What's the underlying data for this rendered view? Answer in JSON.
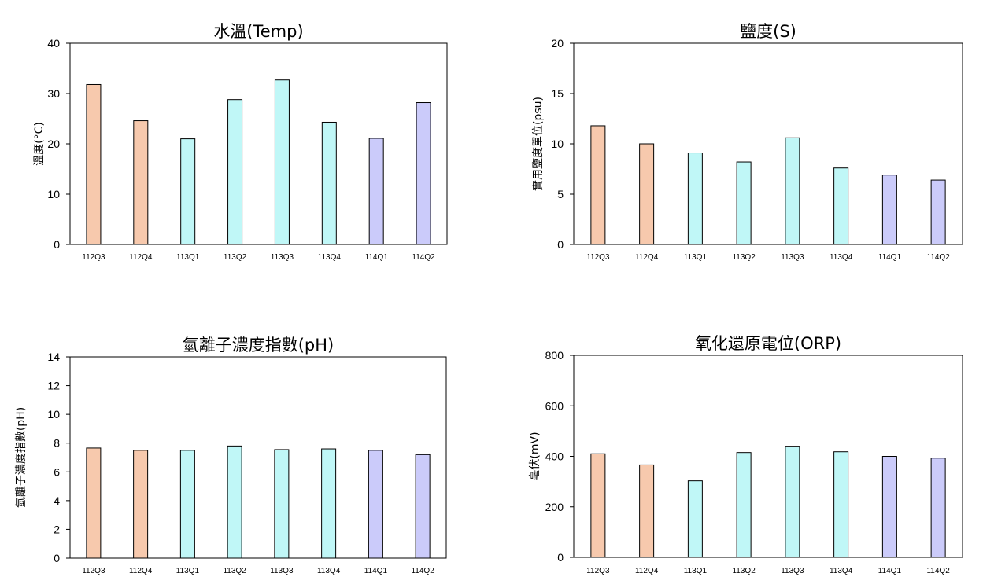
{
  "chart_data": [
    {
      "type": "bar",
      "title": "水溫(Temp)",
      "xlabel": "",
      "ylabel": "溫度(°C)",
      "categories": [
        "112Q3",
        "112Q4",
        "113Q1",
        "113Q2",
        "113Q3",
        "113Q4",
        "114Q1",
        "114Q2"
      ],
      "values": [
        31.8,
        24.6,
        21.0,
        28.8,
        32.7,
        24.3,
        21.1,
        28.2
      ],
      "yticks": [
        "0",
        "10",
        "20",
        "30",
        "40"
      ],
      "ylim": [
        0,
        40
      ],
      "colors": [
        "#f7c9ad",
        "#f7c9ad",
        "#c0f7f7",
        "#c0f7f7",
        "#c0f7f7",
        "#c0f7f7",
        "#cbcbfa",
        "#cbcbfa"
      ],
      "grid": false,
      "legend": "none"
    },
    {
      "type": "bar",
      "title": "鹽度(S)",
      "xlabel": "",
      "ylabel": "實用鹽度單位(psu)",
      "categories": [
        "112Q3",
        "112Q4",
        "113Q1",
        "113Q2",
        "113Q3",
        "113Q4",
        "114Q1",
        "114Q2"
      ],
      "values": [
        11.8,
        10.0,
        9.1,
        8.2,
        10.6,
        7.6,
        6.9,
        6.4
      ],
      "yticks": [
        "0",
        "5",
        "10",
        "15",
        "20"
      ],
      "ylim": [
        0,
        20
      ],
      "colors": [
        "#f7c9ad",
        "#f7c9ad",
        "#c0f7f7",
        "#c0f7f7",
        "#c0f7f7",
        "#c0f7f7",
        "#cbcbfa",
        "#cbcbfa"
      ],
      "grid": false,
      "legend": "none"
    },
    {
      "type": "bar",
      "title": "氫離子濃度指數(pH)",
      "xlabel": "",
      "ylabel": "氫離子濃度指數(pH)",
      "categories": [
        "112Q3",
        "112Q4",
        "113Q1",
        "113Q2",
        "113Q3",
        "113Q4",
        "114Q1",
        "114Q2"
      ],
      "values": [
        7.66,
        7.5,
        7.5,
        7.8,
        7.55,
        7.6,
        7.5,
        7.2
      ],
      "yticks": [
        "0",
        "2",
        "4",
        "6",
        "8",
        "10",
        "12",
        "14"
      ],
      "ylim": [
        0,
        14
      ],
      "colors": [
        "#f7c9ad",
        "#f7c9ad",
        "#c0f7f7",
        "#c0f7f7",
        "#c0f7f7",
        "#c0f7f7",
        "#cbcbfa",
        "#cbcbfa"
      ],
      "grid": false,
      "legend": "none"
    },
    {
      "type": "bar",
      "title": "氧化還原電位(ORP)",
      "xlabel": "",
      "ylabel": "毫伏(mV)",
      "categories": [
        "112Q3",
        "112Q4",
        "113Q1",
        "113Q2",
        "113Q3",
        "113Q4",
        "114Q1",
        "114Q2"
      ],
      "values": [
        410,
        366,
        303,
        415,
        440,
        418,
        400,
        393
      ],
      "yticks": [
        "0",
        "200",
        "400",
        "600",
        "800"
      ],
      "ylim": [
        0,
        800
      ],
      "colors": [
        "#f7c9ad",
        "#f7c9ad",
        "#c0f7f7",
        "#c0f7f7",
        "#c0f7f7",
        "#c0f7f7",
        "#cbcbfa",
        "#cbcbfa"
      ],
      "grid": false,
      "legend": "none"
    }
  ]
}
